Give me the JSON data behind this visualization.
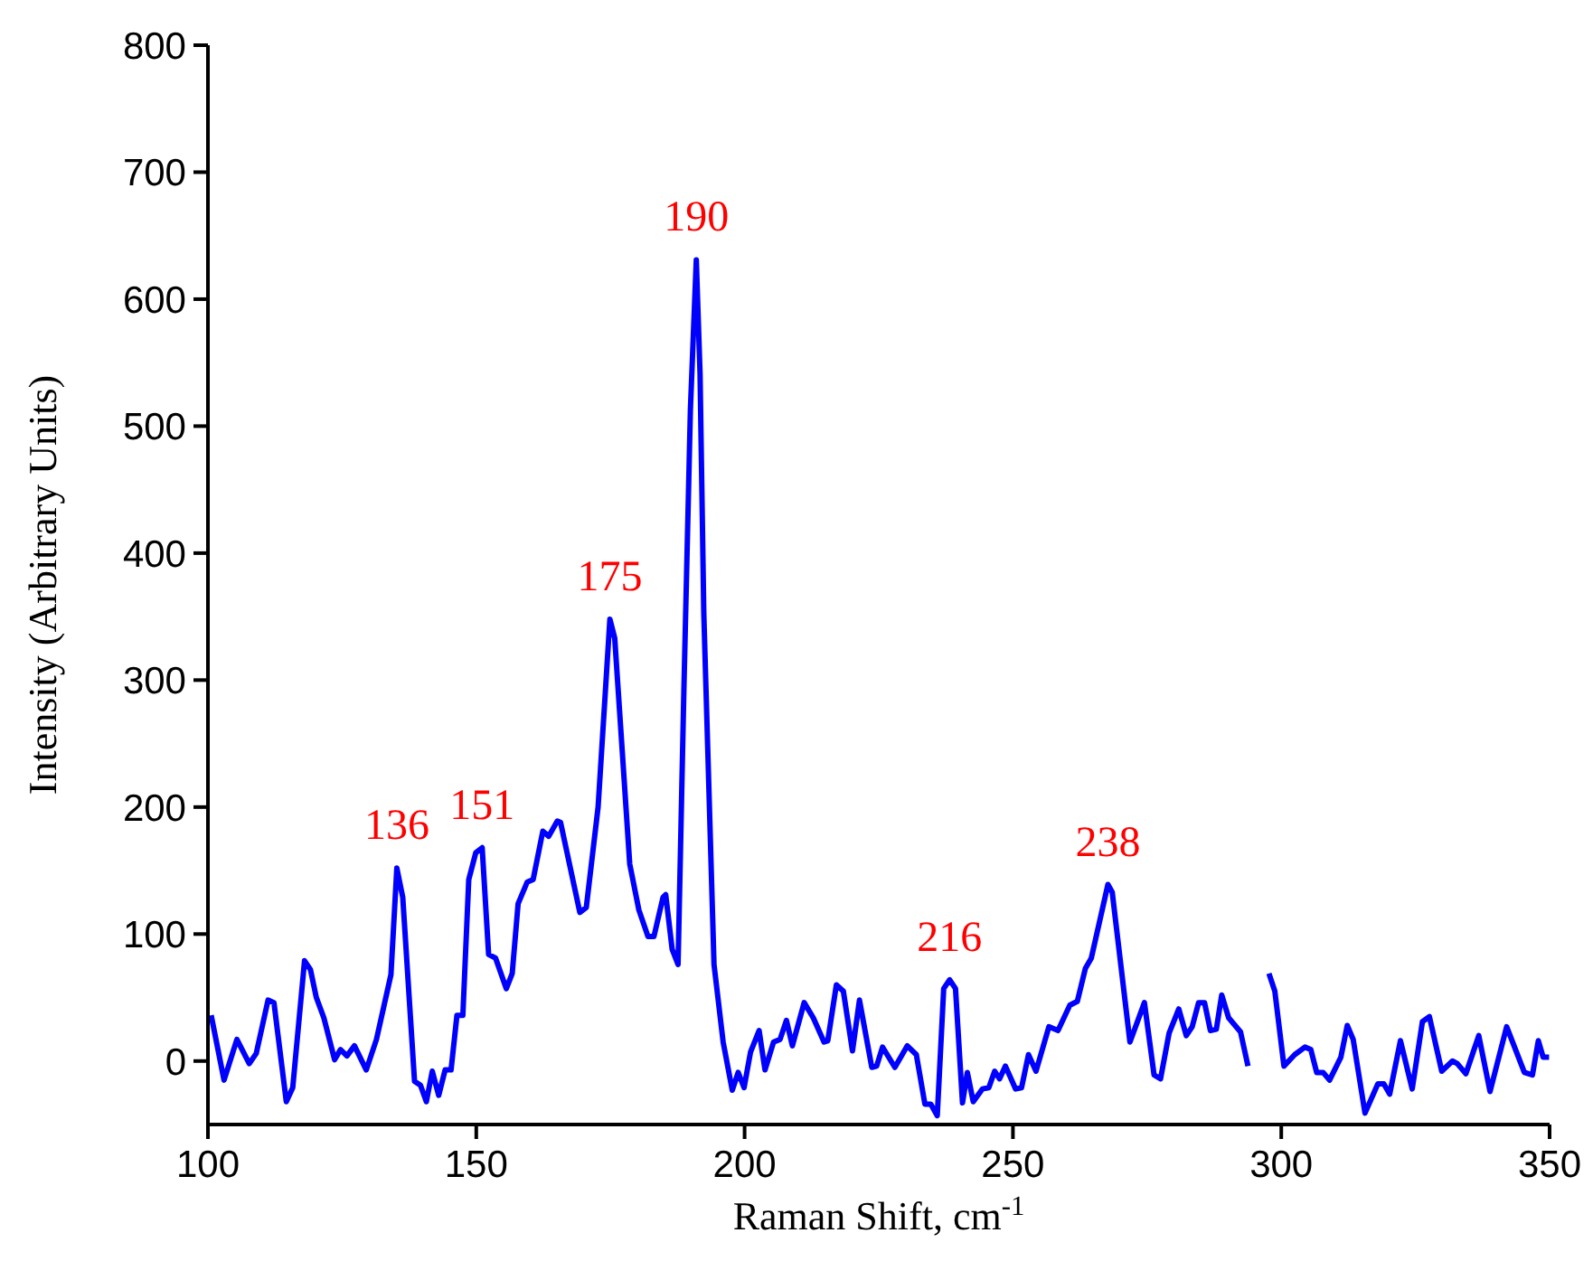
{
  "chart_data": {
    "type": "line",
    "xlabel": "Raman Shift, cm$^{-1}$",
    "ylabel": "Intensity (Arbitrary Units)",
    "xlim": [
      100,
      350
    ],
    "xticks": [
      100,
      150,
      200,
      250,
      300,
      350
    ],
    "ylim": [
      -50,
      800
    ],
    "yticks": [
      0,
      100,
      200,
      300,
      400,
      500,
      600,
      700,
      800
    ],
    "marker": "none",
    "line_style": "solid",
    "legend": false,
    "annotations": [
      {
        "text": "136",
        "x": 135.2,
        "y": 152
      },
      {
        "text": "151",
        "x": 151.1,
        "y": 168
      },
      {
        "text": "175",
        "x": 174.9,
        "y": 348
      },
      {
        "text": "190",
        "x": 191,
        "y": 631
      },
      {
        "text": "216",
        "x": 238.2,
        "y": 64
      },
      {
        "text": "238",
        "x": 267.7,
        "y": 139
      }
    ],
    "series": [
      {
        "color": "#0000ff",
        "x": [
          100.6,
          103,
          105.4,
          107.7,
          109,
          111.2,
          112.3,
          114.6,
          115.8,
          118,
          119.1,
          120.2,
          121.6,
          123.6,
          124.7,
          125.9,
          127.3,
          129.5,
          131.4,
          134.1,
          135.2,
          136.3,
          138.5,
          139.6,
          140.7,
          141.8,
          143,
          144.2,
          145.3,
          146.4,
          147.5,
          148.6,
          149.9,
          151.1,
          152.3,
          153.6,
          155.6,
          156.7,
          157.8,
          159.5,
          160.6,
          162.4,
          163.5,
          165.1,
          165.7,
          169.3,
          170.5,
          172.7,
          174.9,
          175.8,
          178.6,
          180.3,
          182,
          183.1,
          184.8,
          185.3,
          186.5,
          187.6,
          188.7,
          189.9,
          191,
          191.7,
          192.4,
          194.3,
          196,
          197.7,
          198.8,
          199.9,
          201.1,
          202.7,
          203.8,
          205.4,
          206.6,
          207.8,
          208.9,
          211.1,
          212.8,
          214.8,
          215.5,
          217.1,
          218.4,
          220.1,
          221.4,
          223.7,
          224.6,
          225.7,
          228,
          230.3,
          232,
          233.6,
          234.7,
          235.9,
          237.1,
          238.2,
          239.3,
          240.6,
          241.5,
          242.6,
          244.3,
          245.5,
          246.6,
          247.5,
          248.6,
          250.5,
          251.6,
          252.9,
          254.3,
          256.7,
          258.4,
          260.6,
          262,
          263.5,
          264.6,
          267.7,
          268.5,
          271.8,
          274.5,
          276.3,
          277.5,
          279.1,
          280.9,
          282.3,
          283.4,
          284.6,
          285.7,
          286.8,
          287.9,
          288.9,
          290.2,
          292.4,
          293.8,
          294.9,
          295.8,
          297.7,
          298.8,
          300.5,
          302.5,
          304.4,
          305.5,
          306.6,
          307.8,
          309,
          311.1,
          312.3,
          313.4,
          315.6,
          318,
          319.1,
          320.2,
          322.2,
          324.4,
          326.3,
          327.6,
          329.9,
          331.9,
          332.8,
          334.4,
          336.8,
          338.9,
          342,
          345.3,
          346.8,
          347.9,
          348.8,
          349.9
        ],
        "values": [
          36,
          -15,
          17,
          -2,
          6,
          48,
          46,
          -32,
          -21,
          79,
          72,
          50,
          34,
          1,
          9,
          4,
          12,
          -7,
          17,
          68,
          152,
          129,
          -16,
          -19,
          -32,
          -8,
          -27,
          -7,
          -7,
          36,
          36,
          143,
          164,
          168,
          84,
          81,
          57,
          69,
          124,
          141,
          143,
          181,
          177,
          189,
          188,
          117,
          121,
          200,
          348,
          333,
          155,
          119,
          98,
          98,
          129,
          131,
          88,
          76,
          295,
          513,
          631,
          541,
          352,
          76,
          15,
          -23,
          -9,
          -21,
          7,
          24,
          -7,
          15,
          17,
          32,
          12,
          46,
          34,
          15,
          16,
          60,
          55,
          8,
          48,
          -5,
          -4,
          11,
          -5,
          12,
          5,
          -34,
          -34,
          -43,
          57,
          64,
          57,
          -33,
          -9,
          -32,
          -22,
          -21,
          -8,
          -14,
          -4,
          -22,
          -21,
          5,
          -8,
          27,
          24,
          44,
          47,
          73,
          81,
          139,
          133,
          15,
          46,
          -11,
          -14,
          22,
          41,
          20,
          27,
          46,
          46,
          24,
          25,
          52,
          34,
          23,
          -4,
          null,
          null,
          69,
          55,
          -4,
          5,
          11,
          9,
          -9,
          -9,
          -15,
          3,
          28,
          17,
          -41,
          -18,
          -18,
          -26,
          16,
          -22,
          31,
          35,
          -8,
          0,
          -2,
          -10,
          20,
          -24,
          27,
          -9,
          -11,
          16,
          3,
          3
        ]
      }
    ]
  }
}
